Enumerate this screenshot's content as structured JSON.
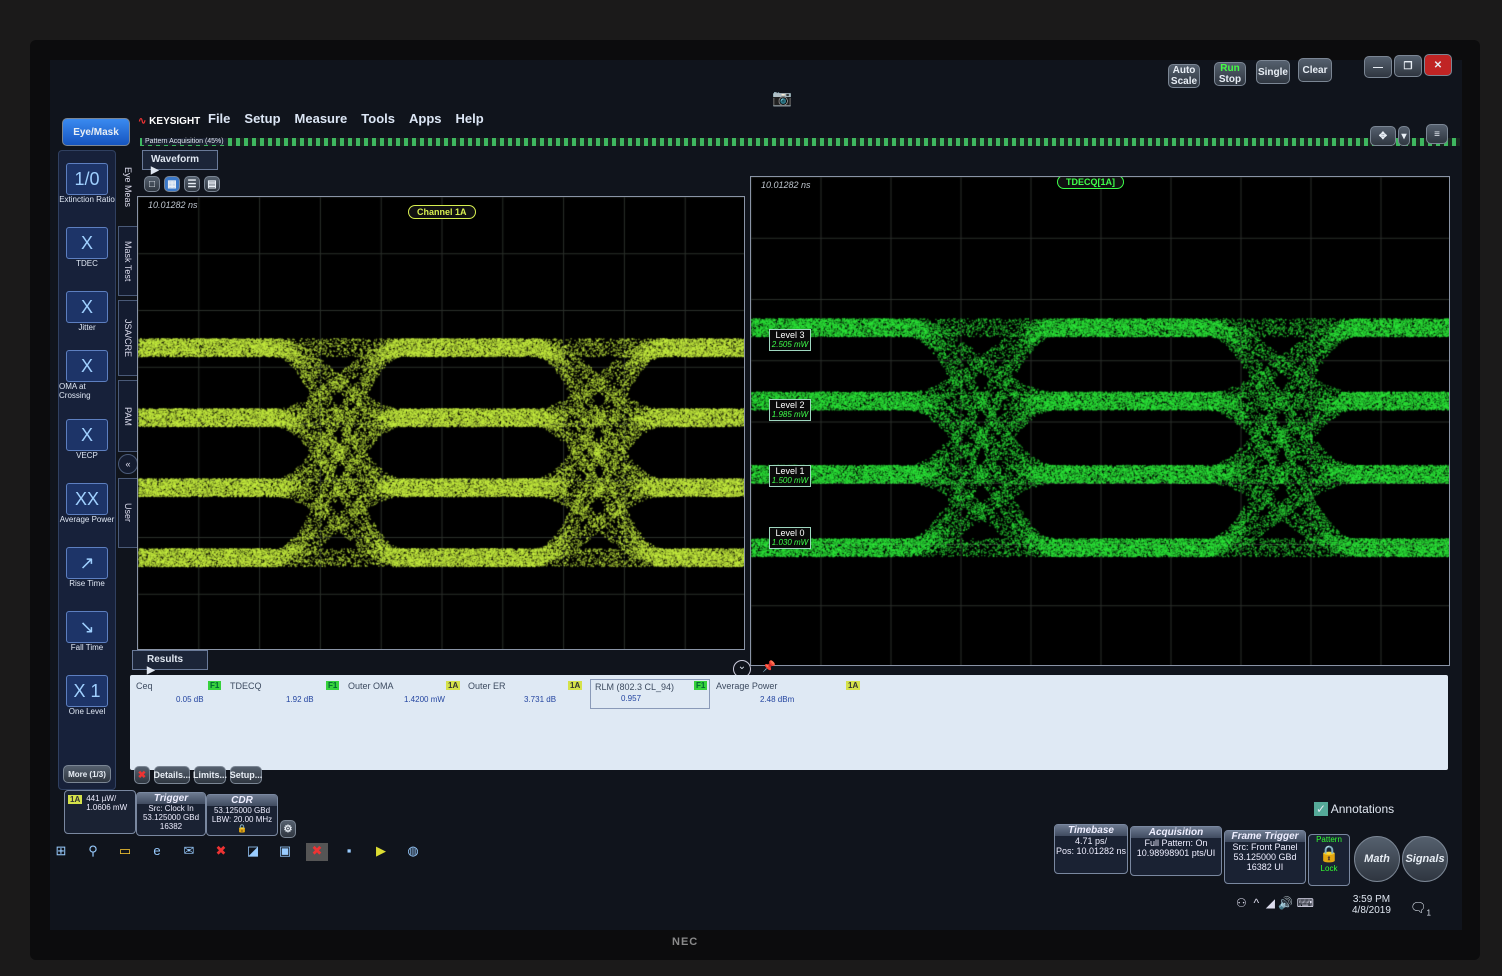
{
  "app": {
    "brand": "KEYSIGHT",
    "mode_button": "Eye/Mask",
    "menu": [
      "File",
      "Setup",
      "Measure",
      "Tools",
      "Apps",
      "Help"
    ],
    "pattern_acquisition": "Pattern Acquisition",
    "pattern_progress": "(45%)"
  },
  "toolbar": {
    "auto_scale": "Auto Scale",
    "run_stop_top": "Run",
    "run_stop_bottom": "Stop",
    "single": "Single",
    "clear": "Clear"
  },
  "sidebar": {
    "items": [
      {
        "label": "Extinction Ratio",
        "icon": "extinction-ratio-icon",
        "glyph": "1/0"
      },
      {
        "label": "TDEC",
        "icon": "tdec-icon",
        "glyph": "X"
      },
      {
        "label": "Jitter",
        "icon": "jitter-icon",
        "glyph": "X"
      },
      {
        "label": "OMA at Crossing",
        "icon": "oma-icon",
        "glyph": "X"
      },
      {
        "label": "VECP",
        "icon": "vecp-icon",
        "glyph": "X"
      },
      {
        "label": "Average Power",
        "icon": "average-power-icon",
        "glyph": "XX"
      },
      {
        "label": "Rise Time",
        "icon": "rise-time-icon",
        "glyph": "↗"
      },
      {
        "label": "Fall Time",
        "icon": "fall-time-icon",
        "glyph": "↘"
      },
      {
        "label": "One Level",
        "icon": "one-level-icon",
        "glyph": "X 1"
      }
    ],
    "more": "More (1/3)"
  },
  "vtabs": [
    "Eye Meas",
    "Mask Test",
    "JSA/CRE",
    "PAM",
    "User"
  ],
  "waveform": {
    "title": "Waveform",
    "left": {
      "timestamp": "10.01282 ns",
      "channel": "Channel 1A",
      "color": "#c8f040"
    },
    "right": {
      "timestamp": "10.01282 ns",
      "channel": "TDECQ[1A]",
      "color": "#2eea3a",
      "levels": [
        {
          "name": "Level 3",
          "value": "2.505 mW"
        },
        {
          "name": "Level 2",
          "value": "1.985 mW"
        },
        {
          "name": "Level 1",
          "value": "1.500 mW"
        },
        {
          "name": "Level 0",
          "value": "1.030 mW"
        }
      ]
    }
  },
  "results": {
    "title": "Results",
    "items": [
      {
        "name": "Ceq",
        "value": "0.05 dB",
        "source": "F1"
      },
      {
        "name": "TDECQ",
        "value": "1.92 dB",
        "source": "F1"
      },
      {
        "name": "Outer OMA",
        "value": "1.4200 mW",
        "source": "1A"
      },
      {
        "name": "Outer ER",
        "value": "3.731 dB",
        "source": "1A"
      },
      {
        "name": "RLM (802.3 CL_94)",
        "value": "0.957",
        "source": "F1"
      },
      {
        "name": "Average Power",
        "value": "2.48 dBm",
        "source": "1A"
      }
    ],
    "buttons": {
      "details": "Details...",
      "limits": "Limits...",
      "setup": "Setup..."
    }
  },
  "status": {
    "channel": {
      "badge": "1A",
      "line1": "441 µW/",
      "line2": "1.0606 mW"
    },
    "trigger": {
      "title": "Trigger",
      "l1": "Src: Clock In",
      "l2": "53.125000 GBd",
      "l3": "16382"
    },
    "cdr": {
      "title": "CDR",
      "l1": "53.125000 GBd",
      "l2": "LBW: 20.00 MHz"
    },
    "annotations": "Annotations",
    "timebase": {
      "title": "Timebase",
      "l1": "4.71 ps/",
      "l2": "Pos: 10.01282 ns"
    },
    "acquisition": {
      "title": "Acquisition",
      "l1": "Full Pattern: On",
      "l2": "10.98998901 pts/UI"
    },
    "frame_trigger": {
      "title": "Frame Trigger",
      "l1": "Src: Front Panel",
      "l2": "53.125000 GBd",
      "l3": "16382 UI"
    },
    "pattern_lock": {
      "top": "Pattern",
      "bottom": "Lock"
    },
    "math": "Math",
    "signals": "Signals"
  },
  "taskbar": {
    "time": "3:59 PM",
    "date": "4/8/2019",
    "notifications": "1"
  },
  "monitor_brand": "NEC"
}
